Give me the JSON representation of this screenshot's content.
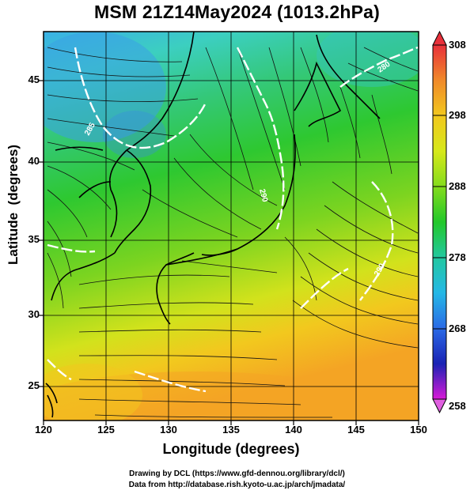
{
  "title": "MSM 21Z14May2024 (1013.2hPa)",
  "xlabel": "Longitude (degrees)",
  "ylabel": "Latitude  (degrees)",
  "credits": {
    "line1": "Drawing by DCL (https://www.gfd-dennou.org/library/dcl/)",
    "line2": "Data from http://database.rish.kyoto-u.ac.jp/arch/jmadata/"
  },
  "x_ticks": [
    "120",
    "125",
    "130",
    "135",
    "140",
    "145",
    "150"
  ],
  "y_ticks": [
    "25",
    "30",
    "35",
    "40",
    "45"
  ],
  "colorbar": {
    "labels": [
      "308",
      "298",
      "288",
      "278",
      "268",
      "258"
    ],
    "colors": [
      "#e8303a",
      "#f08a2a",
      "#f2c81e",
      "#d6e81a",
      "#84dc1c",
      "#22c82a",
      "#22c8a0",
      "#24b8e6",
      "#2a6ae6",
      "#1a22b4",
      "#6a0aa8",
      "#d81ad8"
    ]
  },
  "chart_data": {
    "type": "heatmap",
    "variable": "surface temperature (K) with streamlines and white contours",
    "xlim": [
      120,
      150
    ],
    "ylim": [
      22.4,
      47.6
    ],
    "color_range": [
      258,
      308
    ],
    "contour_labels": [
      "285",
      "290",
      "280",
      "290"
    ]
  }
}
